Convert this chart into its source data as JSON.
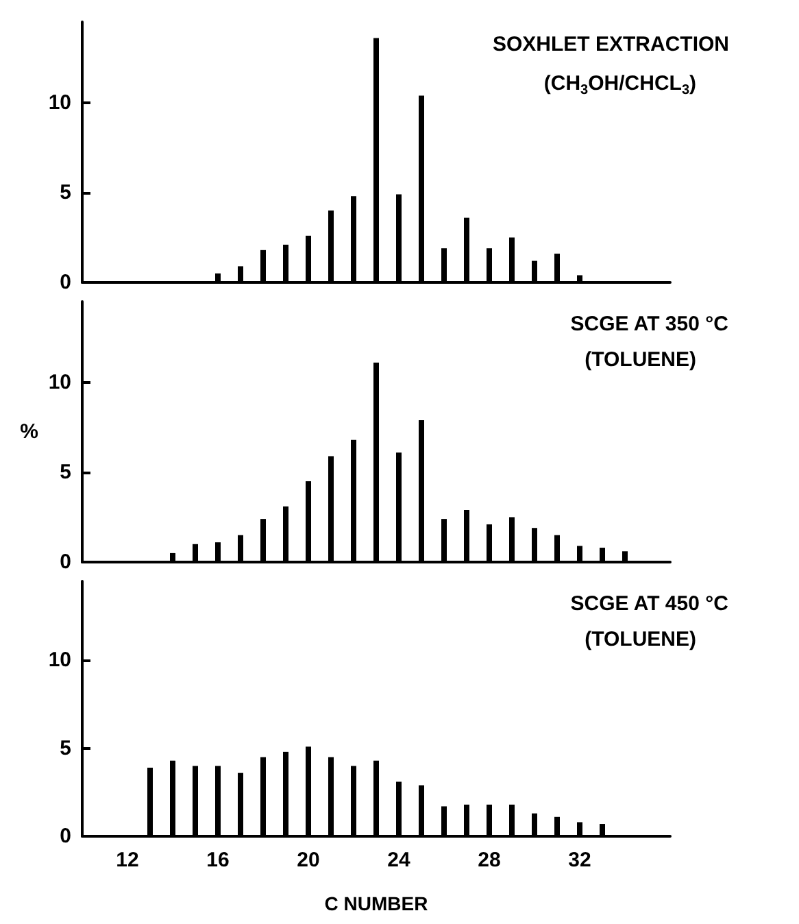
{
  "chart_data": [
    {
      "type": "bar",
      "title": "SOXHLET EXTRACTION",
      "subtitle": "(CH$_{3}$OH/CHCL$_{3}$)",
      "color": "#000000",
      "x": [
        16,
        17,
        18,
        19,
        20,
        21,
        22,
        23,
        24,
        25,
        26,
        27,
        28,
        29,
        30,
        31,
        32
      ],
      "values": [
        0.5,
        0.9,
        1.8,
        2.1,
        2.6,
        4.0,
        4.8,
        13.6,
        4.9,
        10.4,
        1.9,
        3.6,
        1.9,
        2.5,
        1.2,
        1.6,
        0.4
      ],
      "xlim": [
        10,
        36
      ],
      "xticks": [
        12,
        16,
        20,
        24,
        28,
        32
      ],
      "ylim": [
        0,
        14.5
      ],
      "yticks": [
        0,
        5,
        10
      ],
      "tick_labels": "y",
      "grid": false
    },
    {
      "type": "bar",
      "title": "SCGE AT 350 °C",
      "subtitle": "(TOLUENE)",
      "ylabel": "%",
      "color": "#000000",
      "x": [
        14,
        15,
        16,
        17,
        18,
        19,
        20,
        21,
        22,
        23,
        24,
        25,
        26,
        27,
        28,
        29,
        30,
        31,
        32,
        33,
        34
      ],
      "values": [
        0.5,
        1.0,
        1.1,
        1.5,
        2.4,
        3.1,
        4.5,
        5.9,
        6.8,
        11.1,
        6.1,
        7.9,
        2.4,
        2.9,
        2.1,
        2.5,
        1.9,
        1.5,
        0.9,
        0.8,
        0.6
      ],
      "xlim": [
        10,
        36
      ],
      "xticks": [
        12,
        16,
        20,
        24,
        28,
        32
      ],
      "ylim": [
        0,
        14.5
      ],
      "yticks": [
        0,
        5,
        10
      ],
      "tick_labels": "y",
      "grid": false
    },
    {
      "type": "bar",
      "title": "SCGE AT 450 °C",
      "subtitle": "(TOLUENE)",
      "xlabel": "C NUMBER",
      "color": "#000000",
      "x": [
        13,
        14,
        15,
        16,
        17,
        18,
        19,
        20,
        21,
        22,
        23,
        24,
        25,
        26,
        27,
        28,
        29,
        30,
        31,
        32,
        33
      ],
      "values": [
        3.9,
        4.3,
        4.0,
        4.0,
        3.6,
        4.5,
        4.8,
        5.1,
        4.5,
        4.0,
        4.3,
        3.1,
        2.9,
        1.7,
        1.8,
        1.8,
        1.8,
        1.3,
        1.1,
        0.8,
        0.7
      ],
      "xlim": [
        10,
        36
      ],
      "xticks": [
        12,
        16,
        20,
        24,
        28,
        32
      ],
      "ylim": [
        0,
        14.5
      ],
      "yticks": [
        0,
        5,
        10
      ],
      "grid": false
    }
  ]
}
